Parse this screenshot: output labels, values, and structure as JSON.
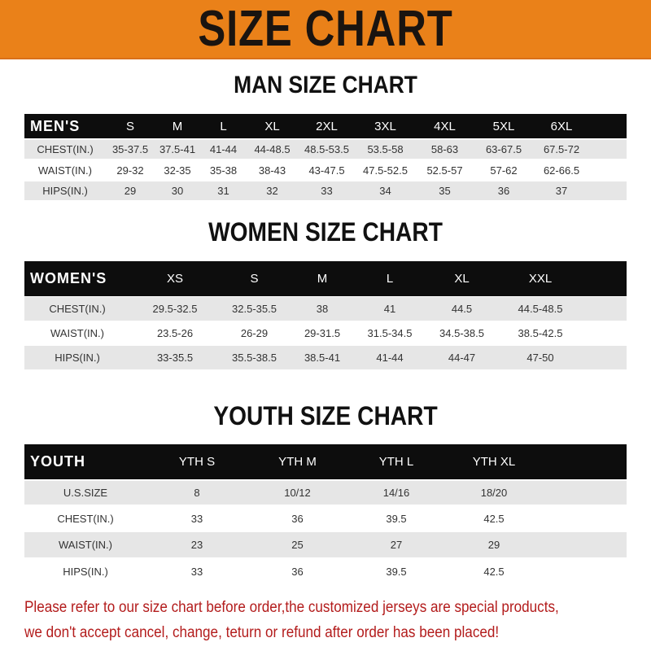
{
  "banner_title": "SIZE CHART",
  "men": {
    "title": "MAN SIZE CHART",
    "header_label": "MEN'S",
    "sizes": [
      "S",
      "M",
      "L",
      "XL",
      "2XL",
      "3XL",
      "4XL",
      "5XL",
      "6XL"
    ],
    "rows": [
      {
        "label": "CHEST(IN.)",
        "values": [
          "35-37.5",
          "37.5-41",
          "41-44",
          "44-48.5",
          "48.5-53.5",
          "53.5-58",
          "58-63",
          "63-67.5",
          "67.5-72"
        ]
      },
      {
        "label": "WAIST(IN.)",
        "values": [
          "29-32",
          "32-35",
          "35-38",
          "38-43",
          "43-47.5",
          "47.5-52.5",
          "52.5-57",
          "57-62",
          "62-66.5"
        ]
      },
      {
        "label": "HIPS(IN.)",
        "values": [
          "29",
          "30",
          "31",
          "32",
          "33",
          "34",
          "35",
          "36",
          "37"
        ]
      }
    ]
  },
  "women": {
    "title": "WOMEN SIZE CHART",
    "header_label": "WOMEN'S",
    "sizes": [
      "XS",
      "S",
      "M",
      "L",
      "XL",
      "XXL"
    ],
    "rows": [
      {
        "label": "CHEST(IN.)",
        "values": [
          "29.5-32.5",
          "32.5-35.5",
          "38",
          "41",
          "44.5",
          "44.5-48.5"
        ]
      },
      {
        "label": "WAIST(IN.)",
        "values": [
          "23.5-26",
          "26-29",
          "29-31.5",
          "31.5-34.5",
          "34.5-38.5",
          "38.5-42.5"
        ]
      },
      {
        "label": "HIPS(IN.)",
        "values": [
          "33-35.5",
          "35.5-38.5",
          "38.5-41",
          "41-44",
          "44-47",
          "47-50"
        ]
      }
    ]
  },
  "youth": {
    "title": "YOUTH SIZE CHART",
    "header_label": "YOUTH",
    "sizes": [
      "YTH S",
      "YTH M",
      "YTH L",
      "YTH XL"
    ],
    "rows": [
      {
        "label": "U.S.SIZE",
        "values": [
          "8",
          "10/12",
          "14/16",
          "18/20"
        ]
      },
      {
        "label": "CHEST(IN.)",
        "values": [
          "33",
          "36",
          "39.5",
          "42.5"
        ]
      },
      {
        "label": "WAIST(IN.)",
        "values": [
          "23",
          "25",
          "27",
          "29"
        ]
      },
      {
        "label": "HIPS(IN.)",
        "values": [
          "33",
          "36",
          "39.5",
          "42.5"
        ]
      }
    ]
  },
  "footer": {
    "line1": "Please refer to our size chart before order,the customized jerseys are special products,",
    "line2": "we don't accept cancel, change, teturn or refund after order has been placed!"
  },
  "colors": {
    "banner": "#ea8119",
    "header_row": "#0d0d0d",
    "stripe": "#e6e6e6",
    "footer_text": "#b31c1c"
  }
}
